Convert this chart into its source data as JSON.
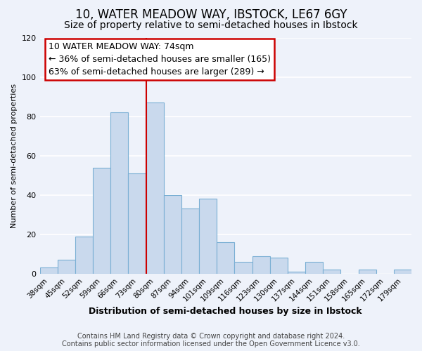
{
  "title": "10, WATER MEADOW WAY, IBSTOCK, LE67 6GY",
  "subtitle": "Size of property relative to semi-detached houses in Ibstock",
  "xlabel": "Distribution of semi-detached houses by size in Ibstock",
  "ylabel": "Number of semi-detached properties",
  "bar_labels": [
    "38sqm",
    "45sqm",
    "52sqm",
    "59sqm",
    "66sqm",
    "73sqm",
    "80sqm",
    "87sqm",
    "94sqm",
    "101sqm",
    "109sqm",
    "116sqm",
    "123sqm",
    "130sqm",
    "137sqm",
    "144sqm",
    "151sqm",
    "158sqm",
    "165sqm",
    "172sqm",
    "179sqm"
  ],
  "bar_values": [
    3,
    7,
    19,
    54,
    82,
    51,
    87,
    40,
    33,
    38,
    16,
    6,
    9,
    8,
    1,
    6,
    2,
    0,
    2,
    0,
    2
  ],
  "bar_color": "#c9d9ed",
  "bar_edge_color": "#7aafd4",
  "annotation_title": "10 WATER MEADOW WAY: 74sqm",
  "annotation_line1": "← 36% of semi-detached houses are smaller (165)",
  "annotation_line2": "63% of semi-detached houses are larger (289) →",
  "annotation_box_color": "#ffffff",
  "annotation_box_edge": "#cc0000",
  "vline_color": "#cc0000",
  "ylim": [
    0,
    120
  ],
  "yticks": [
    0,
    20,
    40,
    60,
    80,
    100,
    120
  ],
  "footer1": "Contains HM Land Registry data © Crown copyright and database right 2024.",
  "footer2": "Contains public sector information licensed under the Open Government Licence v3.0.",
  "background_color": "#eef2fa",
  "grid_color": "#ffffff",
  "title_fontsize": 12,
  "subtitle_fontsize": 10,
  "annotation_fontsize": 9,
  "footer_fontsize": 7
}
